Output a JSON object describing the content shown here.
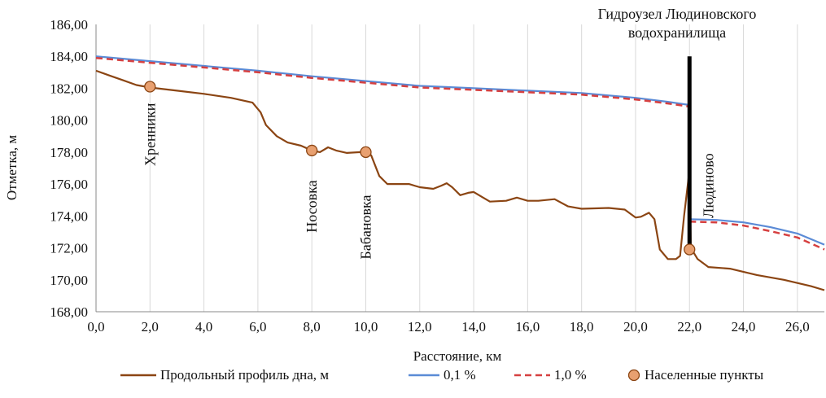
{
  "chart_data": {
    "type": "line",
    "xlabel": "Расстояние, км",
    "ylabel": "Отметка, м",
    "xlim": [
      0,
      27
    ],
    "ylim": [
      168,
      186
    ],
    "x_ticks": [
      0,
      2,
      4,
      6,
      8,
      10,
      12,
      14,
      16,
      18,
      20,
      22,
      24,
      26
    ],
    "x_tick_labels": [
      "0,0",
      "2,0",
      "4,0",
      "6,0",
      "8,0",
      "10,0",
      "12,0",
      "14,0",
      "16,0",
      "18,0",
      "20,0",
      "22,0",
      "24,0",
      "26,0"
    ],
    "y_ticks": [
      168,
      170,
      172,
      174,
      176,
      178,
      180,
      182,
      184,
      186
    ],
    "y_tick_labels": [
      "168,00",
      "170,00",
      "172,00",
      "174,00",
      "176,00",
      "178,00",
      "180,00",
      "182,00",
      "184,00",
      "186,00"
    ],
    "grid": "vertical",
    "legend_position": "bottom",
    "series": [
      {
        "name": "Продольный профиль дна, м",
        "color": "#8B4513",
        "style": "solid",
        "points": [
          [
            0,
            183.1
          ],
          [
            0.5,
            182.8
          ],
          [
            1,
            182.5
          ],
          [
            1.5,
            182.2
          ],
          [
            2,
            182.05
          ],
          [
            3,
            181.85
          ],
          [
            4,
            181.65
          ],
          [
            5,
            181.4
          ],
          [
            5.8,
            181.1
          ],
          [
            6.1,
            180.5
          ],
          [
            6.3,
            179.7
          ],
          [
            6.7,
            179.0
          ],
          [
            7.1,
            178.6
          ],
          [
            7.6,
            178.4
          ],
          [
            8,
            178.1
          ],
          [
            8.3,
            178.0
          ],
          [
            8.6,
            178.3
          ],
          [
            8.9,
            178.1
          ],
          [
            9.3,
            177.95
          ],
          [
            9.8,
            178.0
          ],
          [
            10,
            178.0
          ],
          [
            10.2,
            177.8
          ],
          [
            10.5,
            176.5
          ],
          [
            10.8,
            176.0
          ],
          [
            11.2,
            176.0
          ],
          [
            11.6,
            176.0
          ],
          [
            12,
            175.8
          ],
          [
            12.5,
            175.7
          ],
          [
            12.8,
            175.9
          ],
          [
            13,
            176.05
          ],
          [
            13.2,
            175.8
          ],
          [
            13.5,
            175.3
          ],
          [
            13.8,
            175.45
          ],
          [
            14,
            175.5
          ],
          [
            14.3,
            175.2
          ],
          [
            14.6,
            174.9
          ],
          [
            15.2,
            174.95
          ],
          [
            15.6,
            175.15
          ],
          [
            16,
            174.95
          ],
          [
            16.4,
            174.95
          ],
          [
            17,
            175.05
          ],
          [
            17.5,
            174.6
          ],
          [
            18,
            174.45
          ],
          [
            19,
            174.5
          ],
          [
            19.6,
            174.4
          ],
          [
            20,
            173.9
          ],
          [
            20.2,
            173.95
          ],
          [
            20.5,
            174.2
          ],
          [
            20.7,
            173.8
          ],
          [
            20.9,
            171.9
          ],
          [
            21.2,
            171.3
          ],
          [
            21.5,
            171.3
          ],
          [
            21.65,
            171.5
          ],
          [
            21.8,
            174.0
          ],
          [
            22.0,
            176.9
          ],
          [
            22.05,
            172.0
          ],
          [
            22.3,
            171.3
          ],
          [
            22.7,
            170.8
          ],
          [
            23.5,
            170.7
          ],
          [
            24.5,
            170.3
          ],
          [
            25.5,
            170.0
          ],
          [
            26.5,
            169.6
          ],
          [
            27,
            169.35
          ]
        ]
      },
      {
        "name": "0,1 %",
        "color": "#5B8BD6",
        "style": "solid",
        "segments": [
          [
            [
              0,
              184.0
            ],
            [
              2,
              183.7
            ],
            [
              4,
              183.4
            ],
            [
              6,
              183.1
            ],
            [
              8,
              182.75
            ],
            [
              10,
              182.45
            ],
            [
              12,
              182.15
            ],
            [
              14,
              182.0
            ],
            [
              16,
              181.85
            ],
            [
              18,
              181.7
            ],
            [
              20,
              181.4
            ],
            [
              21.2,
              181.15
            ],
            [
              22,
              180.95
            ]
          ],
          [
            [
              22,
              173.8
            ],
            [
              23,
              173.75
            ],
            [
              24,
              173.6
            ],
            [
              25,
              173.3
            ],
            [
              26,
              172.9
            ],
            [
              27,
              172.2
            ]
          ]
        ]
      },
      {
        "name": "1,0 %",
        "color": "#D64040",
        "style": "dashed",
        "segments": [
          [
            [
              0,
              183.9
            ],
            [
              2,
              183.6
            ],
            [
              4,
              183.3
            ],
            [
              6,
              183.0
            ],
            [
              8,
              182.65
            ],
            [
              10,
              182.35
            ],
            [
              12,
              182.05
            ],
            [
              14,
              181.9
            ],
            [
              16,
              181.75
            ],
            [
              18,
              181.6
            ],
            [
              20,
              181.3
            ],
            [
              21.2,
              181.05
            ],
            [
              22,
              180.85
            ]
          ],
          [
            [
              22,
              173.65
            ],
            [
              23,
              173.6
            ],
            [
              24,
              173.4
            ],
            [
              25,
              173.05
            ],
            [
              26,
              172.65
            ],
            [
              27,
              171.9
            ]
          ]
        ]
      },
      {
        "name": "Населенные пункты",
        "color": "#E8A070",
        "type": "scatter",
        "points": [
          [
            2,
            182.1
          ],
          [
            8,
            178.1
          ],
          [
            10,
            178.0
          ],
          [
            22,
            171.9
          ]
        ]
      }
    ],
    "settlement_labels": [
      {
        "text": "Хренники",
        "x": 2,
        "y": 179.1
      },
      {
        "text": "Носовка",
        "x": 8,
        "y": 174.6
      },
      {
        "text": "Бабановка",
        "x": 10,
        "y": 173.3
      },
      {
        "text": "Людиново",
        "x": 22.7,
        "y": 175.9
      }
    ],
    "dam": {
      "x": 22,
      "y_top": 184,
      "y_bottom": 171.9,
      "label_lines": [
        "Гидроузел Людиновского",
        "водохранилища"
      ]
    }
  }
}
